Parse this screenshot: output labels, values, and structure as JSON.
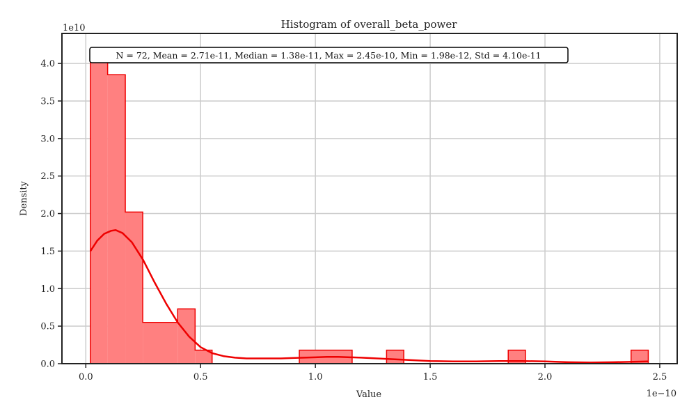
{
  "chart_data": {
    "type": "bar",
    "title": "Histogram of overall_beta_power",
    "xlabel": "Value",
    "ylabel": "Density",
    "x_offset_label": "1e−10",
    "y_offset_label": "1e10",
    "xlim": [
      -0.104,
      2.576
    ],
    "ylim": [
      0,
      4.4
    ],
    "x_ticks": [
      0.0,
      0.5,
      1.0,
      1.5,
      2.0,
      2.5
    ],
    "x_tick_labels": [
      "0.0",
      "0.5",
      "1.0",
      "1.5",
      "2.0",
      "2.5"
    ],
    "y_ticks": [
      0.0,
      0.5,
      1.0,
      1.5,
      2.0,
      2.5,
      3.0,
      3.5,
      4.0
    ],
    "y_tick_labels": [
      "0.0",
      "0.5",
      "1.0",
      "1.5",
      "2.0",
      "2.5",
      "3.0",
      "3.5",
      "4.0"
    ],
    "grid": true,
    "bins": [
      {
        "x0": 0.02,
        "x1": 0.095,
        "density": 4.1
      },
      {
        "x0": 0.095,
        "x1": 0.172,
        "density": 3.85
      },
      {
        "x0": 0.172,
        "x1": 0.248,
        "density": 2.02
      },
      {
        "x0": 0.248,
        "x1": 0.4,
        "density": 0.55
      },
      {
        "x0": 0.4,
        "x1": 0.476,
        "density": 0.73
      },
      {
        "x0": 0.476,
        "x1": 0.55,
        "density": 0.18
      },
      {
        "x0": 0.93,
        "x1": 1.16,
        "density": 0.18
      },
      {
        "x0": 1.31,
        "x1": 1.385,
        "density": 0.18
      },
      {
        "x0": 1.84,
        "x1": 1.915,
        "density": 0.18
      },
      {
        "x0": 2.375,
        "x1": 2.45,
        "density": 0.18
      }
    ],
    "kde": {
      "x": [
        0.02,
        0.05,
        0.08,
        0.11,
        0.13,
        0.16,
        0.2,
        0.25,
        0.3,
        0.35,
        0.4,
        0.45,
        0.5,
        0.55,
        0.6,
        0.65,
        0.7,
        0.75,
        0.8,
        0.85,
        0.9,
        0.95,
        1.0,
        1.05,
        1.1,
        1.15,
        1.2,
        1.3,
        1.4,
        1.5,
        1.6,
        1.7,
        1.8,
        1.9,
        2.0,
        2.1,
        2.2,
        2.3,
        2.45
      ],
      "y": [
        1.5,
        1.64,
        1.73,
        1.77,
        1.78,
        1.74,
        1.62,
        1.38,
        1.08,
        0.8,
        0.55,
        0.36,
        0.22,
        0.14,
        0.1,
        0.08,
        0.07,
        0.07,
        0.07,
        0.07,
        0.075,
        0.08,
        0.085,
        0.09,
        0.09,
        0.085,
        0.08,
        0.065,
        0.05,
        0.035,
        0.03,
        0.03,
        0.035,
        0.035,
        0.03,
        0.02,
        0.015,
        0.02,
        0.03
      ]
    },
    "series": [
      {
        "values": "histogram bins (density)",
        "color": "#ff0000",
        "fill": "#ff7f7f"
      }
    ],
    "annotation": "N = 72, Mean = 2.71e-11, Median = 1.38e-11, Max = 2.45e-10, Min = 1.98e-12, Std = 4.10e-11",
    "colors": {
      "bar_fill": "#ff8080",
      "bar_edge": "#ee0000",
      "kde_line": "#ee0000",
      "grid": "#cccccc",
      "axes": "#222222"
    }
  }
}
